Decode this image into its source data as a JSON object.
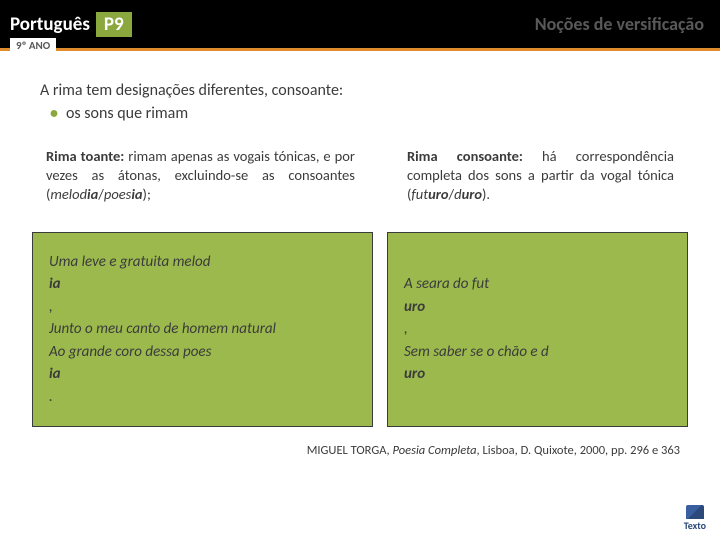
{
  "header": {
    "title": "Português",
    "badge": "P9",
    "grade": "9º ANO",
    "topic": "Noções de versificação"
  },
  "intro": {
    "line": "A rima tem designações diferentes, consoante:",
    "bullet": "os sons que rimam"
  },
  "left": {
    "def_html": "<b>Rima toante:</b> rimam apenas as vogais tónicas, e por vezes as átonas, excluindo-se as consoantes (<i>melod<b>ia</b></i>/<i>poes<b>ia</b></i>);",
    "box_html": "Uma leve e gratuita melod<b>ia</b>,<br>Junto o meu canto de homem natural<br>Ao grande coro dessa poes<b>ia</b>."
  },
  "right": {
    "def_html": "<b>Rima consoante:</b> há correspondência completa dos sons a partir da vogal tónica (<i>fut<b>uro</b></i>/<i>d<b>uro</b></i>).",
    "box_html": "A seara do fut<b>uro</b>,<br>Sem saber se o chão e d<b>uro</b>"
  },
  "citation_html": "MIGUEL TORGA, <i>Poesia Completa</i>, Lisboa, D. Quixote, 2000, pp. 296 e 363",
  "footer": {
    "publisher": "Texto"
  },
  "colors": {
    "accent_green": "#9cb94e",
    "badge_green": "#8ba83f",
    "orange": "#e08b2c",
    "text": "#3b3b3b",
    "header_bg": "#000000"
  }
}
